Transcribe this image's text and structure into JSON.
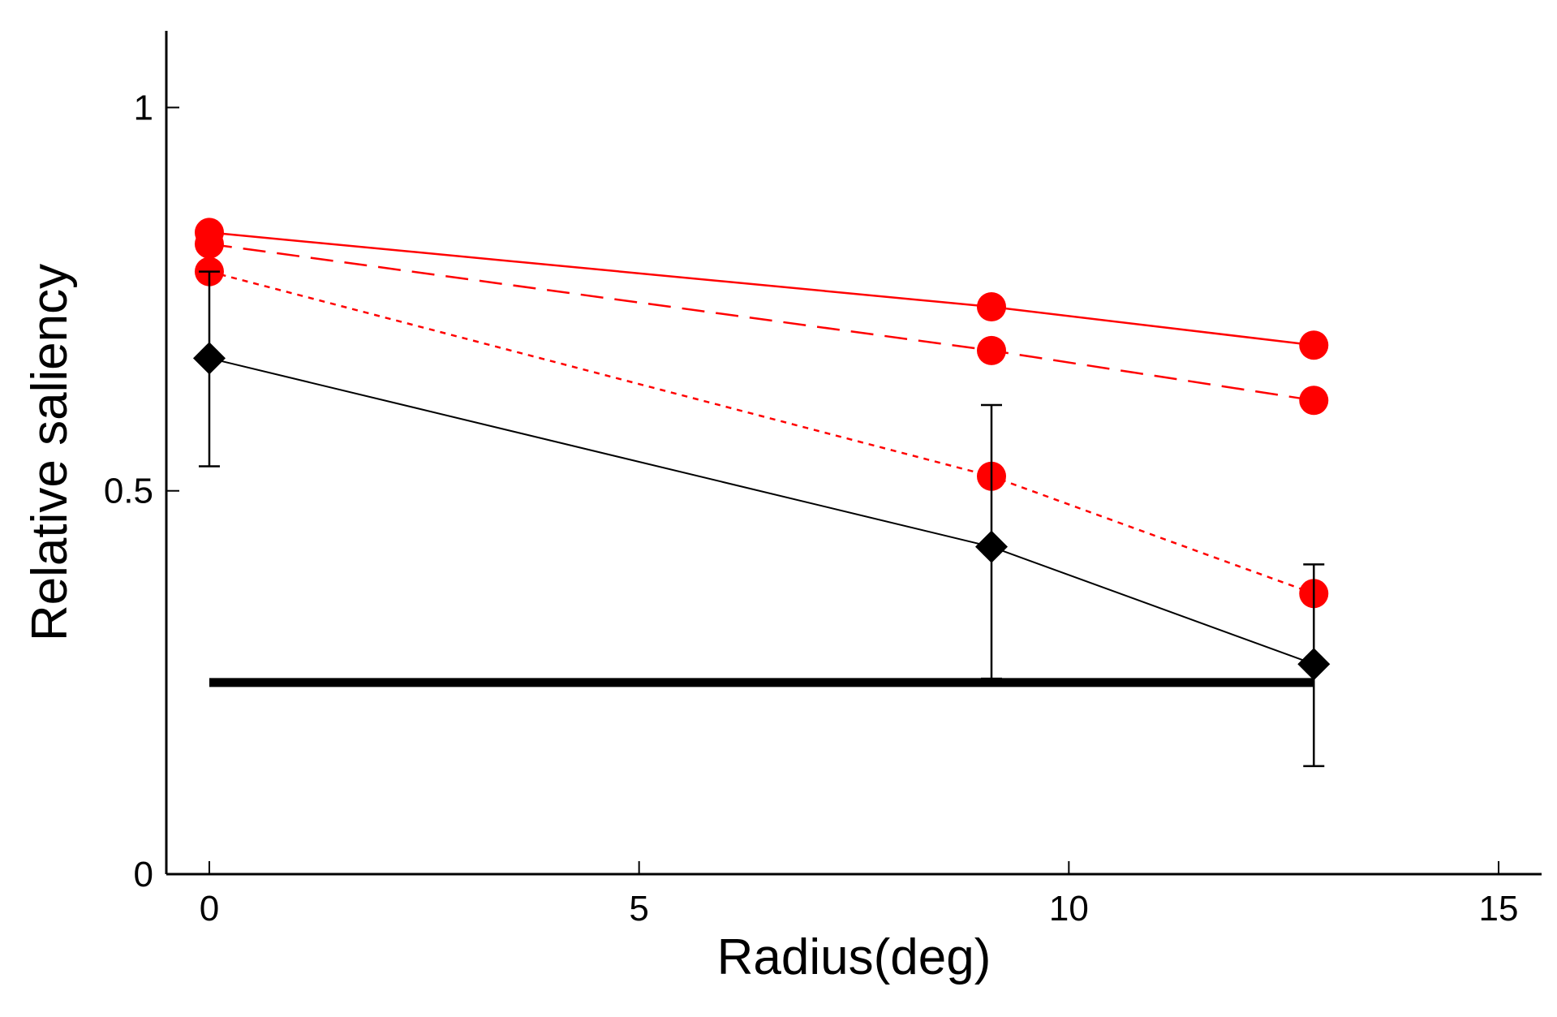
{
  "chart_data": {
    "type": "line",
    "title": "",
    "xlabel": "Radius(deg)",
    "ylabel": "Relative saliency",
    "xlim": [
      -0.5,
      15.5
    ],
    "ylim": [
      0,
      1.1
    ],
    "xticks": [
      0,
      5,
      10,
      15
    ],
    "xtick_labels": [
      "0",
      "5",
      "10",
      "15"
    ],
    "yticks": [
      0,
      0.5,
      1
    ],
    "ytick_labels": [
      "0",
      "0.5",
      "1"
    ],
    "grid": false,
    "legend": "none",
    "series": [
      {
        "color": "#ff0000",
        "line_style": "solid",
        "marker": "circle",
        "x": [
          0,
          9.1,
          12.85
        ],
        "y": [
          0.837,
          0.74,
          0.69
        ]
      },
      {
        "color": "#ff0000",
        "line_style": "dashed",
        "marker": "circle",
        "x": [
          0,
          9.1,
          12.85
        ],
        "y": [
          0.822,
          0.683,
          0.618
        ]
      },
      {
        "color": "#ff0000",
        "line_style": "dotted",
        "marker": "circle",
        "x": [
          0,
          9.1,
          12.85
        ],
        "y": [
          0.786,
          0.519,
          0.366
        ]
      },
      {
        "color": "#000000",
        "line_style": "solid",
        "marker": "diamond",
        "x": [
          0,
          9.1,
          12.85
        ],
        "y": [
          0.673,
          0.427,
          0.274
        ],
        "error_bars": [
          [
            0.532,
            0.786
          ],
          [
            0.255,
            0.612
          ],
          [
            0.141,
            0.404
          ]
        ]
      }
    ],
    "reference_line": {
      "color": "#000000",
      "x": [
        0,
        12.85
      ],
      "y": 0.25
    }
  }
}
